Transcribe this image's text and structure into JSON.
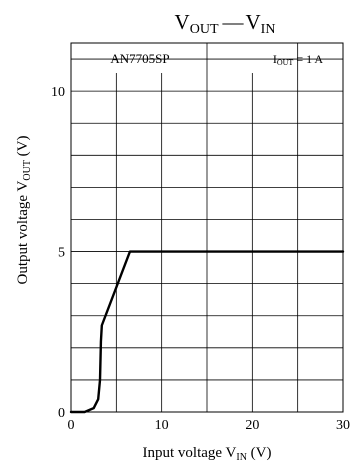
{
  "chart_data": {
    "type": "line",
    "title_main": "V",
    "title_sub1": "OUT",
    "title_dash": "—",
    "title_main2": "V",
    "title_sub2": "IN",
    "device_label": "AN7705SP",
    "condition_main": "I",
    "condition_sub": "OUT",
    "condition_rest": " = 1 A",
    "xlabel_main": "Input voltage  V",
    "xlabel_sub": "IN",
    "xlabel_unit": "  (V)",
    "ylabel_main": "Output voltage  V",
    "ylabel_sub": "OUT",
    "ylabel_unit": "  (V)",
    "xlim": [
      0,
      30
    ],
    "ylim": [
      0,
      11.5
    ],
    "x_ticks": [
      0,
      10,
      20,
      30
    ],
    "x_tick_labels": [
      "0",
      "10",
      "20",
      "30"
    ],
    "y_ticks": [
      0,
      5,
      10
    ],
    "y_tick_labels": [
      "0",
      "5",
      "10"
    ],
    "x_grid": [
      0,
      5,
      10,
      15,
      20,
      25,
      30
    ],
    "y_grid": [
      1,
      2,
      3,
      4,
      5,
      6,
      7,
      8,
      9,
      10,
      11
    ],
    "grid": true,
    "series": [
      {
        "x": [
          0,
          1.5,
          2.5,
          3.0,
          3.2,
          3.3,
          3.4,
          6.5,
          30
        ],
        "y": [
          0,
          0,
          0.12,
          0.4,
          1.0,
          2.2,
          2.7,
          5.0,
          5.0
        ]
      }
    ]
  }
}
